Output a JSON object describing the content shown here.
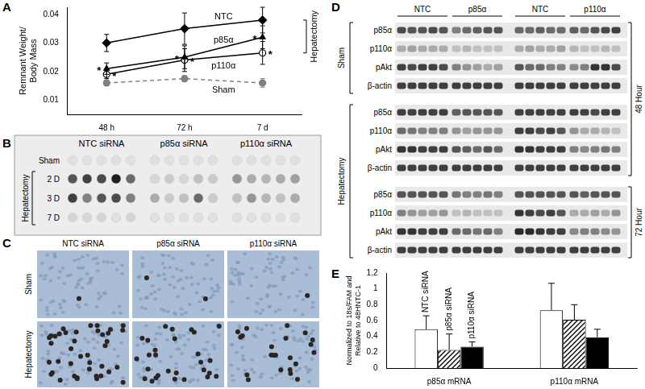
{
  "panels": [
    "A",
    "B",
    "C",
    "D",
    "E"
  ],
  "chart_data": [
    {
      "type": "line",
      "y_label": [
        "Remnant Weight/",
        "Body Mass"
      ],
      "categories": [
        "48 h",
        "72 h",
        "7 d"
      ],
      "ylim": [
        0.005,
        0.0425
      ],
      "yticks": [
        0.01,
        0.02,
        0.03,
        0.04
      ],
      "grid": false,
      "significance_mark": "*",
      "bracket": {
        "text": "Hepatectomy",
        "series": [
          "NTC",
          "p85α",
          "p110α"
        ]
      },
      "series": [
        {
          "name": "NTC",
          "color": "#000000",
          "marker": "diamond",
          "line_style": "solid",
          "values": [
            0.03,
            0.035,
            0.038
          ],
          "errors": [
            0.003,
            0.0055,
            0.0045
          ],
          "significant": [
            false,
            false,
            false
          ]
        },
        {
          "name": "p85α",
          "color": "#000000",
          "marker": "triangle",
          "line_style": "solid",
          "values": [
            0.021,
            0.025,
            0.032
          ],
          "errors": [
            0.002,
            0.004,
            0.004
          ],
          "significant": [
            true,
            true,
            true
          ]
        },
        {
          "name": "p110α",
          "color": "#000000",
          "marker": "open_circle",
          "line_style": "solid",
          "values": [
            0.019,
            0.024,
            0.0265
          ],
          "errors": [
            0.0015,
            0.004,
            0.004
          ],
          "significant": [
            true,
            true,
            true
          ]
        },
        {
          "name": "Sham",
          "color": "#808080",
          "marker": "circle",
          "line_style": "dashed",
          "values": [
            0.016,
            0.0175,
            0.016
          ],
          "errors": [
            0.001,
            0.001,
            0.0015
          ],
          "significant": [
            false,
            false,
            false
          ]
        }
      ]
    },
    {
      "type": "bar",
      "y_label": [
        "Normalized to 18s/FAM and",
        "Relative to 48HNTC-1"
      ],
      "categories": [
        "p85α mRNA",
        "p110α mRNA"
      ],
      "ylim": [
        0,
        1.2
      ],
      "yticks": [
        0,
        0.2,
        0.4,
        0.6,
        0.8,
        1,
        1.2
      ],
      "grid": false,
      "series": [
        {
          "name": "NTC siRNA",
          "color": "#ffffff",
          "values": [
            0.49,
            0.73
          ],
          "errors": [
            0.17,
            0.34
          ]
        },
        {
          "name": "p85α siRNA",
          "color": "#000000",
          "line_style": "hatched",
          "values": [
            0.23,
            0.61
          ],
          "errors": [
            0.2,
            0.19
          ]
        },
        {
          "name": "p110α siRNA",
          "color": "#000000",
          "values": [
            0.27,
            0.39
          ],
          "errors": [
            0.06,
            0.1
          ]
        }
      ]
    }
  ],
  "dot_blot": {
    "columns": [
      "NTC siRNA",
      "p85α siRNA",
      "p110α siRNA"
    ],
    "rows": [
      {
        "label": "Sham",
        "intensity": [
          [
            0.05,
            0.05,
            0.05,
            0.05,
            0.05
          ],
          [
            0.05,
            0.05,
            0.05,
            0.05,
            0.05
          ],
          [
            0.05,
            0.05,
            0.05,
            0.05,
            0.05
          ]
        ]
      },
      {
        "label": "2 D",
        "intensity": [
          [
            0.7,
            0.8,
            0.75,
            0.95,
            0.6
          ],
          [
            0.1,
            0.15,
            0.1,
            0.2,
            0.15
          ],
          [
            0.4,
            0.3,
            0.25,
            0.3,
            0.35
          ]
        ]
      },
      {
        "label": "3 D",
        "intensity": [
          [
            0.8,
            0.5,
            0.7,
            0.75,
            0.5
          ],
          [
            0.3,
            0.15,
            0.2,
            0.6,
            0.15
          ],
          [
            0.2,
            0.4,
            0.25,
            0.2,
            0.3
          ]
        ]
      },
      {
        "label": "7 D",
        "intensity": [
          [
            0.1,
            0.1,
            0.1,
            0.05,
            0.1
          ],
          [
            0.05,
            0.05,
            0.05,
            0.05,
            0.05
          ],
          [
            0.05,
            0.05,
            0.05,
            0.05,
            0.05
          ]
        ]
      }
    ],
    "bracket": {
      "text": "Hepatectomy",
      "rows": [
        "2 D",
        "3 D",
        "7 D"
      ]
    }
  },
  "histology": {
    "columns": [
      "NTC siRNA",
      "p85α siRNA",
      "p110α siRNA"
    ],
    "rows": [
      "Sham",
      "Hepatectomy"
    ],
    "positive_nuclei": [
      [
        1,
        2,
        1
      ],
      [
        40,
        28,
        22
      ]
    ]
  },
  "western_blot": {
    "groups": [
      "NTC",
      "p85α",
      "NTC",
      "p110α"
    ],
    "blocks": [
      [
        {
          "label": "p85α",
          "intensity": [
            [
              0.75,
              0.7,
              0.7,
              0.75,
              0.7
            ],
            [
              0.5,
              0.6,
              0.65,
              0.7,
              0.7
            ],
            [
              0.6,
              0.6,
              0.65,
              0.6,
              0.6
            ],
            [
              0.65,
              0.6,
              0.7,
              0.75,
              0.8
            ]
          ]
        },
        {
          "label": "p110α",
          "intensity": [
            [
              0.3,
              0.35,
              0.3,
              0.3,
              0.3
            ],
            [
              0.2,
              0.25,
              0.2,
              0.2,
              0.2
            ],
            [
              0.3,
              0.35,
              0.3,
              0.3,
              0.35
            ],
            [
              0.25,
              0.2,
              0.2,
              0.25,
              0.2
            ]
          ]
        },
        {
          "label": "pAkt",
          "intensity": [
            [
              0.8,
              0.75,
              0.8,
              0.8,
              0.75
            ],
            [
              0.5,
              0.4,
              0.35,
              0.3,
              0.35
            ],
            [
              0.7,
              0.6,
              0.6,
              0.5,
              0.5
            ],
            [
              0.45,
              0.5,
              0.85,
              0.85,
              0.75
            ]
          ]
        },
        {
          "label": "β-actin",
          "intensity": [
            [
              0.8,
              0.8,
              0.8,
              0.8,
              0.8
            ],
            [
              0.8,
              0.8,
              0.8,
              0.8,
              0.8
            ],
            [
              0.8,
              0.8,
              0.8,
              0.8,
              0.8
            ],
            [
              0.8,
              0.8,
              0.8,
              0.8,
              0.8
            ]
          ]
        }
      ],
      [
        {
          "label": "p85α",
          "intensity": [
            [
              0.8,
              0.8,
              0.8,
              0.8,
              0.8
            ],
            [
              0.65,
              0.7,
              0.7,
              0.7,
              0.7
            ],
            [
              0.8,
              0.8,
              0.8,
              0.8,
              0.8
            ],
            [
              0.8,
              0.8,
              0.75,
              0.8,
              0.8
            ]
          ]
        },
        {
          "label": "p110α",
          "intensity": [
            [
              0.6,
              0.55,
              0.5,
              0.5,
              0.5
            ],
            [
              0.4,
              0.35,
              0.4,
              0.4,
              0.4
            ],
            [
              0.8,
              0.8,
              0.75,
              0.8,
              0.7
            ],
            [
              0.4,
              0.3,
              0.3,
              0.25,
              0.2
            ]
          ]
        },
        {
          "label": "pAkt",
          "intensity": [
            [
              0.85,
              0.85,
              0.8,
              0.8,
              0.8
            ],
            [
              0.7,
              0.65,
              0.6,
              0.7,
              0.6
            ],
            [
              0.85,
              0.85,
              0.8,
              0.8,
              0.8
            ],
            [
              0.5,
              0.45,
              0.5,
              0.55,
              0.5
            ]
          ]
        },
        {
          "label": "β-actin",
          "intensity": [
            [
              0.8,
              0.8,
              0.8,
              0.8,
              0.8
            ],
            [
              0.8,
              0.8,
              0.8,
              0.8,
              0.8
            ],
            [
              0.8,
              0.8,
              0.8,
              0.8,
              0.8
            ],
            [
              0.8,
              0.8,
              0.8,
              0.8,
              0.8
            ]
          ]
        }
      ],
      [
        {
          "label": "p85α",
          "intensity": [
            [
              0.7,
              0.7,
              0.7,
              0.7,
              0.7
            ],
            [
              0.55,
              0.5,
              0.5,
              0.55,
              0.5
            ],
            [
              0.7,
              0.7,
              0.7,
              0.7,
              0.7
            ],
            [
              0.7,
              0.65,
              0.7,
              0.7,
              0.7
            ]
          ]
        },
        {
          "label": "p110α",
          "intensity": [
            [
              0.5,
              0.4,
              0.35,
              0.35,
              0.4
            ],
            [
              0.2,
              0.25,
              0.2,
              0.2,
              0.2
            ],
            [
              0.85,
              0.8,
              0.75,
              0.8,
              0.7
            ],
            [
              0.3,
              0.3,
              0.35,
              0.3,
              0.4
            ]
          ]
        },
        {
          "label": "pAkt",
          "intensity": [
            [
              0.85,
              0.85,
              0.8,
              0.8,
              0.8
            ],
            [
              0.6,
              0.6,
              0.55,
              0.6,
              0.5
            ],
            [
              0.9,
              0.9,
              0.85,
              0.8,
              0.8
            ],
            [
              0.45,
              0.5,
              0.5,
              0.45,
              0.4
            ]
          ]
        },
        {
          "label": "β-actin",
          "intensity": [
            [
              0.8,
              0.8,
              0.8,
              0.8,
              0.8
            ],
            [
              0.8,
              0.8,
              0.8,
              0.8,
              0.8
            ],
            [
              0.8,
              0.8,
              0.8,
              0.8,
              0.8
            ],
            [
              0.8,
              0.8,
              0.8,
              0.8,
              0.8
            ]
          ]
        }
      ]
    ],
    "left_labels": [
      {
        "text": "Sham",
        "blocks": [
          0
        ]
      },
      {
        "text": "Hepatectomy",
        "blocks": [
          1,
          2
        ]
      }
    ],
    "right_labels": [
      {
        "text": "48 Hour",
        "blocks": [
          0,
          1
        ]
      },
      {
        "text": "72 Hour",
        "blocks": [
          2
        ]
      }
    ]
  }
}
